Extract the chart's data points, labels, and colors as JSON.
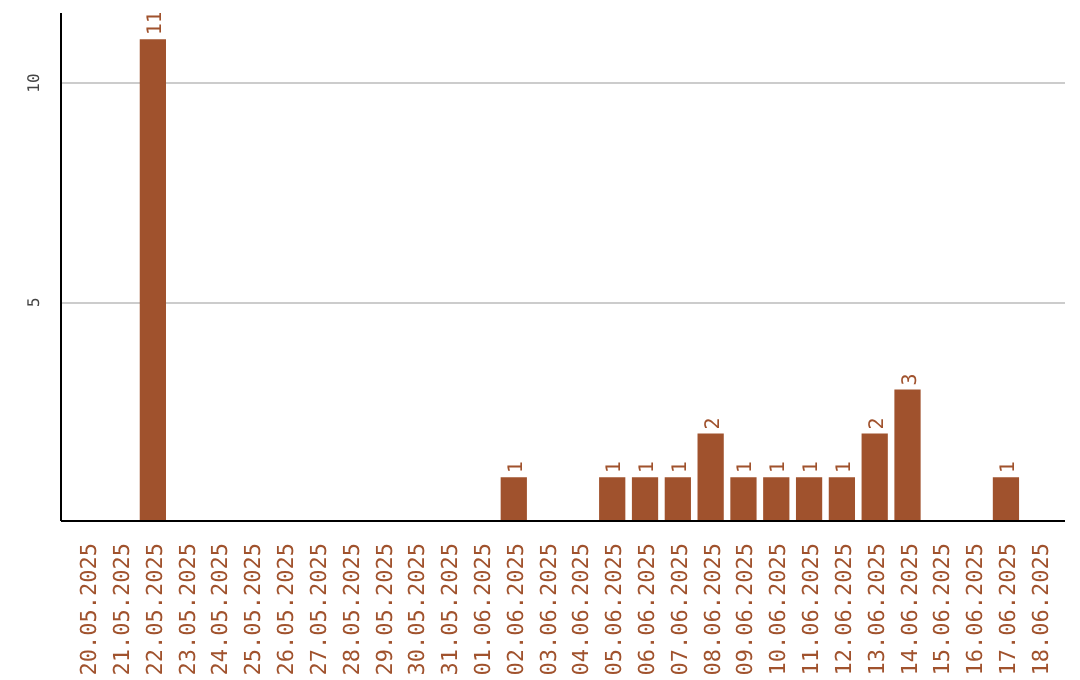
{
  "chart_data": {
    "type": "bar",
    "categories": [
      "20.05.2025",
      "21.05.2025",
      "22.05.2025",
      "23.05.2025",
      "24.05.2025",
      "25.05.2025",
      "26.05.2025",
      "27.05.2025",
      "28.05.2025",
      "29.05.2025",
      "30.05.2025",
      "31.05.2025",
      "01.06.2025",
      "02.06.2025",
      "03.06.2025",
      "04.06.2025",
      "05.06.2025",
      "06.06.2025",
      "07.06.2025",
      "08.06.2025",
      "09.06.2025",
      "10.06.2025",
      "11.06.2025",
      "12.06.2025",
      "13.06.2025",
      "14.06.2025",
      "15.06.2025",
      "16.06.2025",
      "17.06.2025",
      "18.06.2025"
    ],
    "values": [
      0,
      0,
      11,
      0,
      0,
      0,
      0,
      0,
      0,
      0,
      0,
      0,
      0,
      1,
      0,
      0,
      1,
      1,
      1,
      2,
      1,
      1,
      1,
      1,
      2,
      3,
      0,
      0,
      1,
      0
    ],
    "value_labels": [
      null,
      null,
      "11",
      null,
      null,
      null,
      null,
      null,
      null,
      null,
      null,
      null,
      null,
      "1",
      null,
      null,
      "1",
      "1",
      "1",
      "2",
      "1",
      "1",
      "1",
      "1",
      "2",
      "3",
      null,
      null,
      "1",
      null
    ],
    "color": "#a0522d",
    "ylim": [
      0,
      11.6
    ],
    "yticks": [
      5,
      10
    ],
    "grid": "y"
  }
}
